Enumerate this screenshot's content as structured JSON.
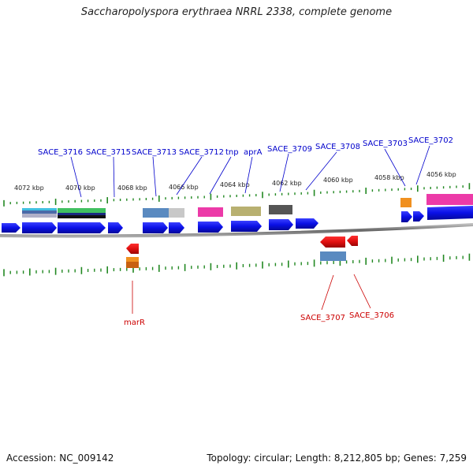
{
  "title": "Saccharopolyspora erythraea NRRL 2338, complete genome",
  "footer": {
    "accession": "Accession: NC_009142",
    "topology": "Topology: circular; Length: 8,212,805 bp; Genes: 7,259"
  },
  "colors": {
    "forward_gene": "#0a10e6",
    "reverse_gene": "#e01010",
    "forward_label": "#0000cc",
    "reverse_label": "#cc0000",
    "tick": "#228822",
    "backbone": "#777777"
  },
  "kbp_labels": [
    "4072 kbp",
    "4070 kbp",
    "4068 kbp",
    "4066 kbp",
    "4064 kbp",
    "4062 kbp",
    "4060 kbp",
    "4058 kbp",
    "4056 kbp"
  ],
  "forward_genes": [
    "SACE_3716",
    "SACE_3715",
    "SACE_3713",
    "SACE_3712",
    "tnp",
    "aprA",
    "SACE_3709",
    "SACE_3708",
    "SACE_3703",
    "SACE_3702"
  ],
  "reverse_genes": [
    "marR",
    "SACE_3707",
    "SACE_3706"
  ]
}
